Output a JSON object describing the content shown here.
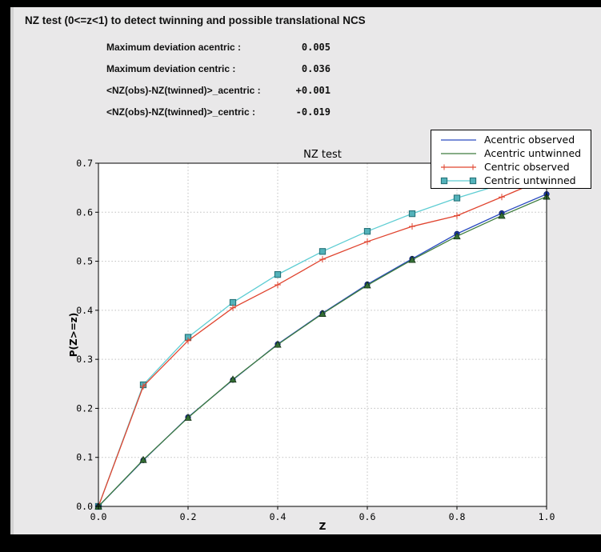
{
  "header": {
    "title": "NZ test (0<=z<1) to detect twinning and possible translational NCS"
  },
  "stats": {
    "rows": [
      {
        "label": "Maximum deviation acentric :",
        "value": "0.005"
      },
      {
        "label": "Maximum deviation centric :",
        "value": "0.036"
      },
      {
        "label": "<NZ(obs)-NZ(twinned)>_acentric :",
        "value": "+0.001"
      },
      {
        "label": "<NZ(obs)-NZ(twinned)>_centric :",
        "value": "-0.019"
      }
    ]
  },
  "colors": {
    "frame_bg": "#000000",
    "window_bg": "#e9e8e9",
    "axes_bg": "#ffffff",
    "grid": "#bfbfbf",
    "acentric_observed": "#2a4bc0",
    "acentric_untwinned": "#3d7c3d",
    "centric_observed": "#e0442f",
    "centric_untwinned": "#5ecdd3"
  },
  "chart_data": {
    "type": "line",
    "title": "NZ test",
    "xlabel": "Z",
    "ylabel": "P(Z>=z)",
    "xlim": [
      0.0,
      1.0
    ],
    "ylim": [
      0.0,
      0.7
    ],
    "xticks": [
      0.0,
      0.2,
      0.4,
      0.6,
      0.8,
      1.0
    ],
    "yticks": [
      0.0,
      0.1,
      0.2,
      0.3,
      0.4,
      0.5,
      0.6,
      0.7
    ],
    "grid": true,
    "legend_position": "upper right",
    "x": [
      0.0,
      0.1,
      0.2,
      0.3,
      0.4,
      0.5,
      0.6,
      0.7,
      0.8,
      0.9,
      1.0
    ],
    "series": [
      {
        "name": "Acentric observed",
        "color": "#2a4bc0",
        "marker": "circle",
        "marker_color": "#1d38a8",
        "marker_edge": "#0f1f66",
        "values": [
          0.0,
          0.094,
          0.182,
          0.258,
          0.331,
          0.394,
          0.453,
          0.505,
          0.556,
          0.598,
          0.637
        ]
      },
      {
        "name": "Acentric untwinned",
        "color": "#3d7c3d",
        "marker": "triangle",
        "marker_color": "#356f35",
        "marker_edge": "#143214",
        "values": [
          0.0,
          0.095,
          0.181,
          0.259,
          0.33,
          0.393,
          0.451,
          0.503,
          0.551,
          0.593,
          0.632
        ]
      },
      {
        "name": "Centric observed",
        "color": "#e0442f",
        "marker": "plus",
        "marker_color": "#e0442f",
        "marker_edge": "#e0442f",
        "values": [
          0.0,
          0.245,
          0.338,
          0.405,
          0.452,
          0.504,
          0.54,
          0.571,
          0.593,
          0.631,
          0.67
        ]
      },
      {
        "name": "Centric untwinned",
        "color": "#5ecdd3",
        "marker": "square",
        "marker_color": "#53b2ba",
        "marker_edge": "#257278",
        "values": [
          0.0,
          0.248,
          0.345,
          0.416,
          0.473,
          0.52,
          0.561,
          0.597,
          0.629,
          0.657,
          0.683
        ]
      }
    ]
  }
}
